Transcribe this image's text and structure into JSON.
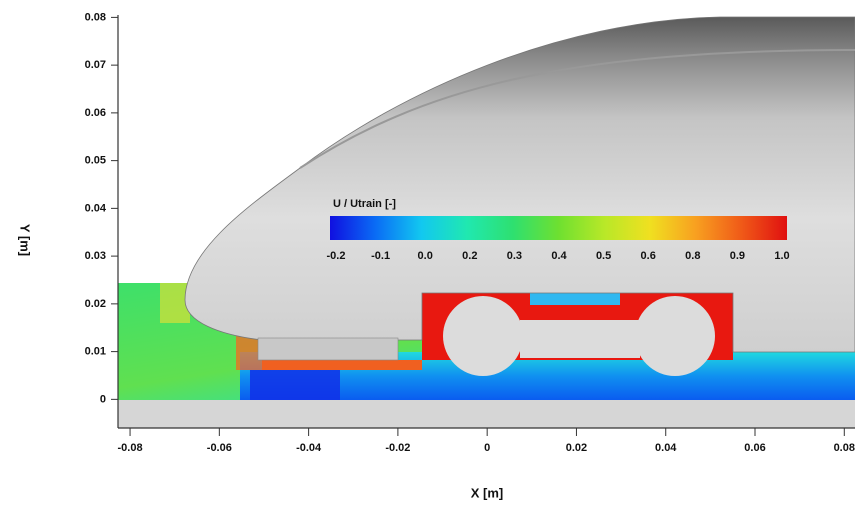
{
  "chart_data": {
    "type": "contour",
    "x_label": "X [m]",
    "y_label": "Y [m]",
    "xlim": [
      -0.0827,
      0.0824
    ],
    "ylim": [
      -0.006,
      0.0805
    ],
    "xticks": [
      -0.08,
      -0.06,
      -0.04,
      -0.02,
      0,
      0.02,
      0.04,
      0.06,
      0.08
    ],
    "yticks": [
      0,
      0.01,
      0.02,
      0.03,
      0.04,
      0.05,
      0.06,
      0.07,
      0.08
    ],
    "colorbar": {
      "title": "U / Utrain  [-]",
      "labels": [
        "-0.2",
        "-0.1",
        "0.0",
        "0.2",
        "0.3",
        "0.4",
        "0.5",
        "0.6",
        "0.8",
        "0.9",
        "1.0"
      ],
      "colors": [
        "#1010e0",
        "#0a6cf5",
        "#12c8f0",
        "#20e8b0",
        "#2ee070",
        "#6ee030",
        "#b8e828",
        "#f0e020",
        "#f8a020",
        "#f05a18",
        "#e01010"
      ]
    }
  }
}
